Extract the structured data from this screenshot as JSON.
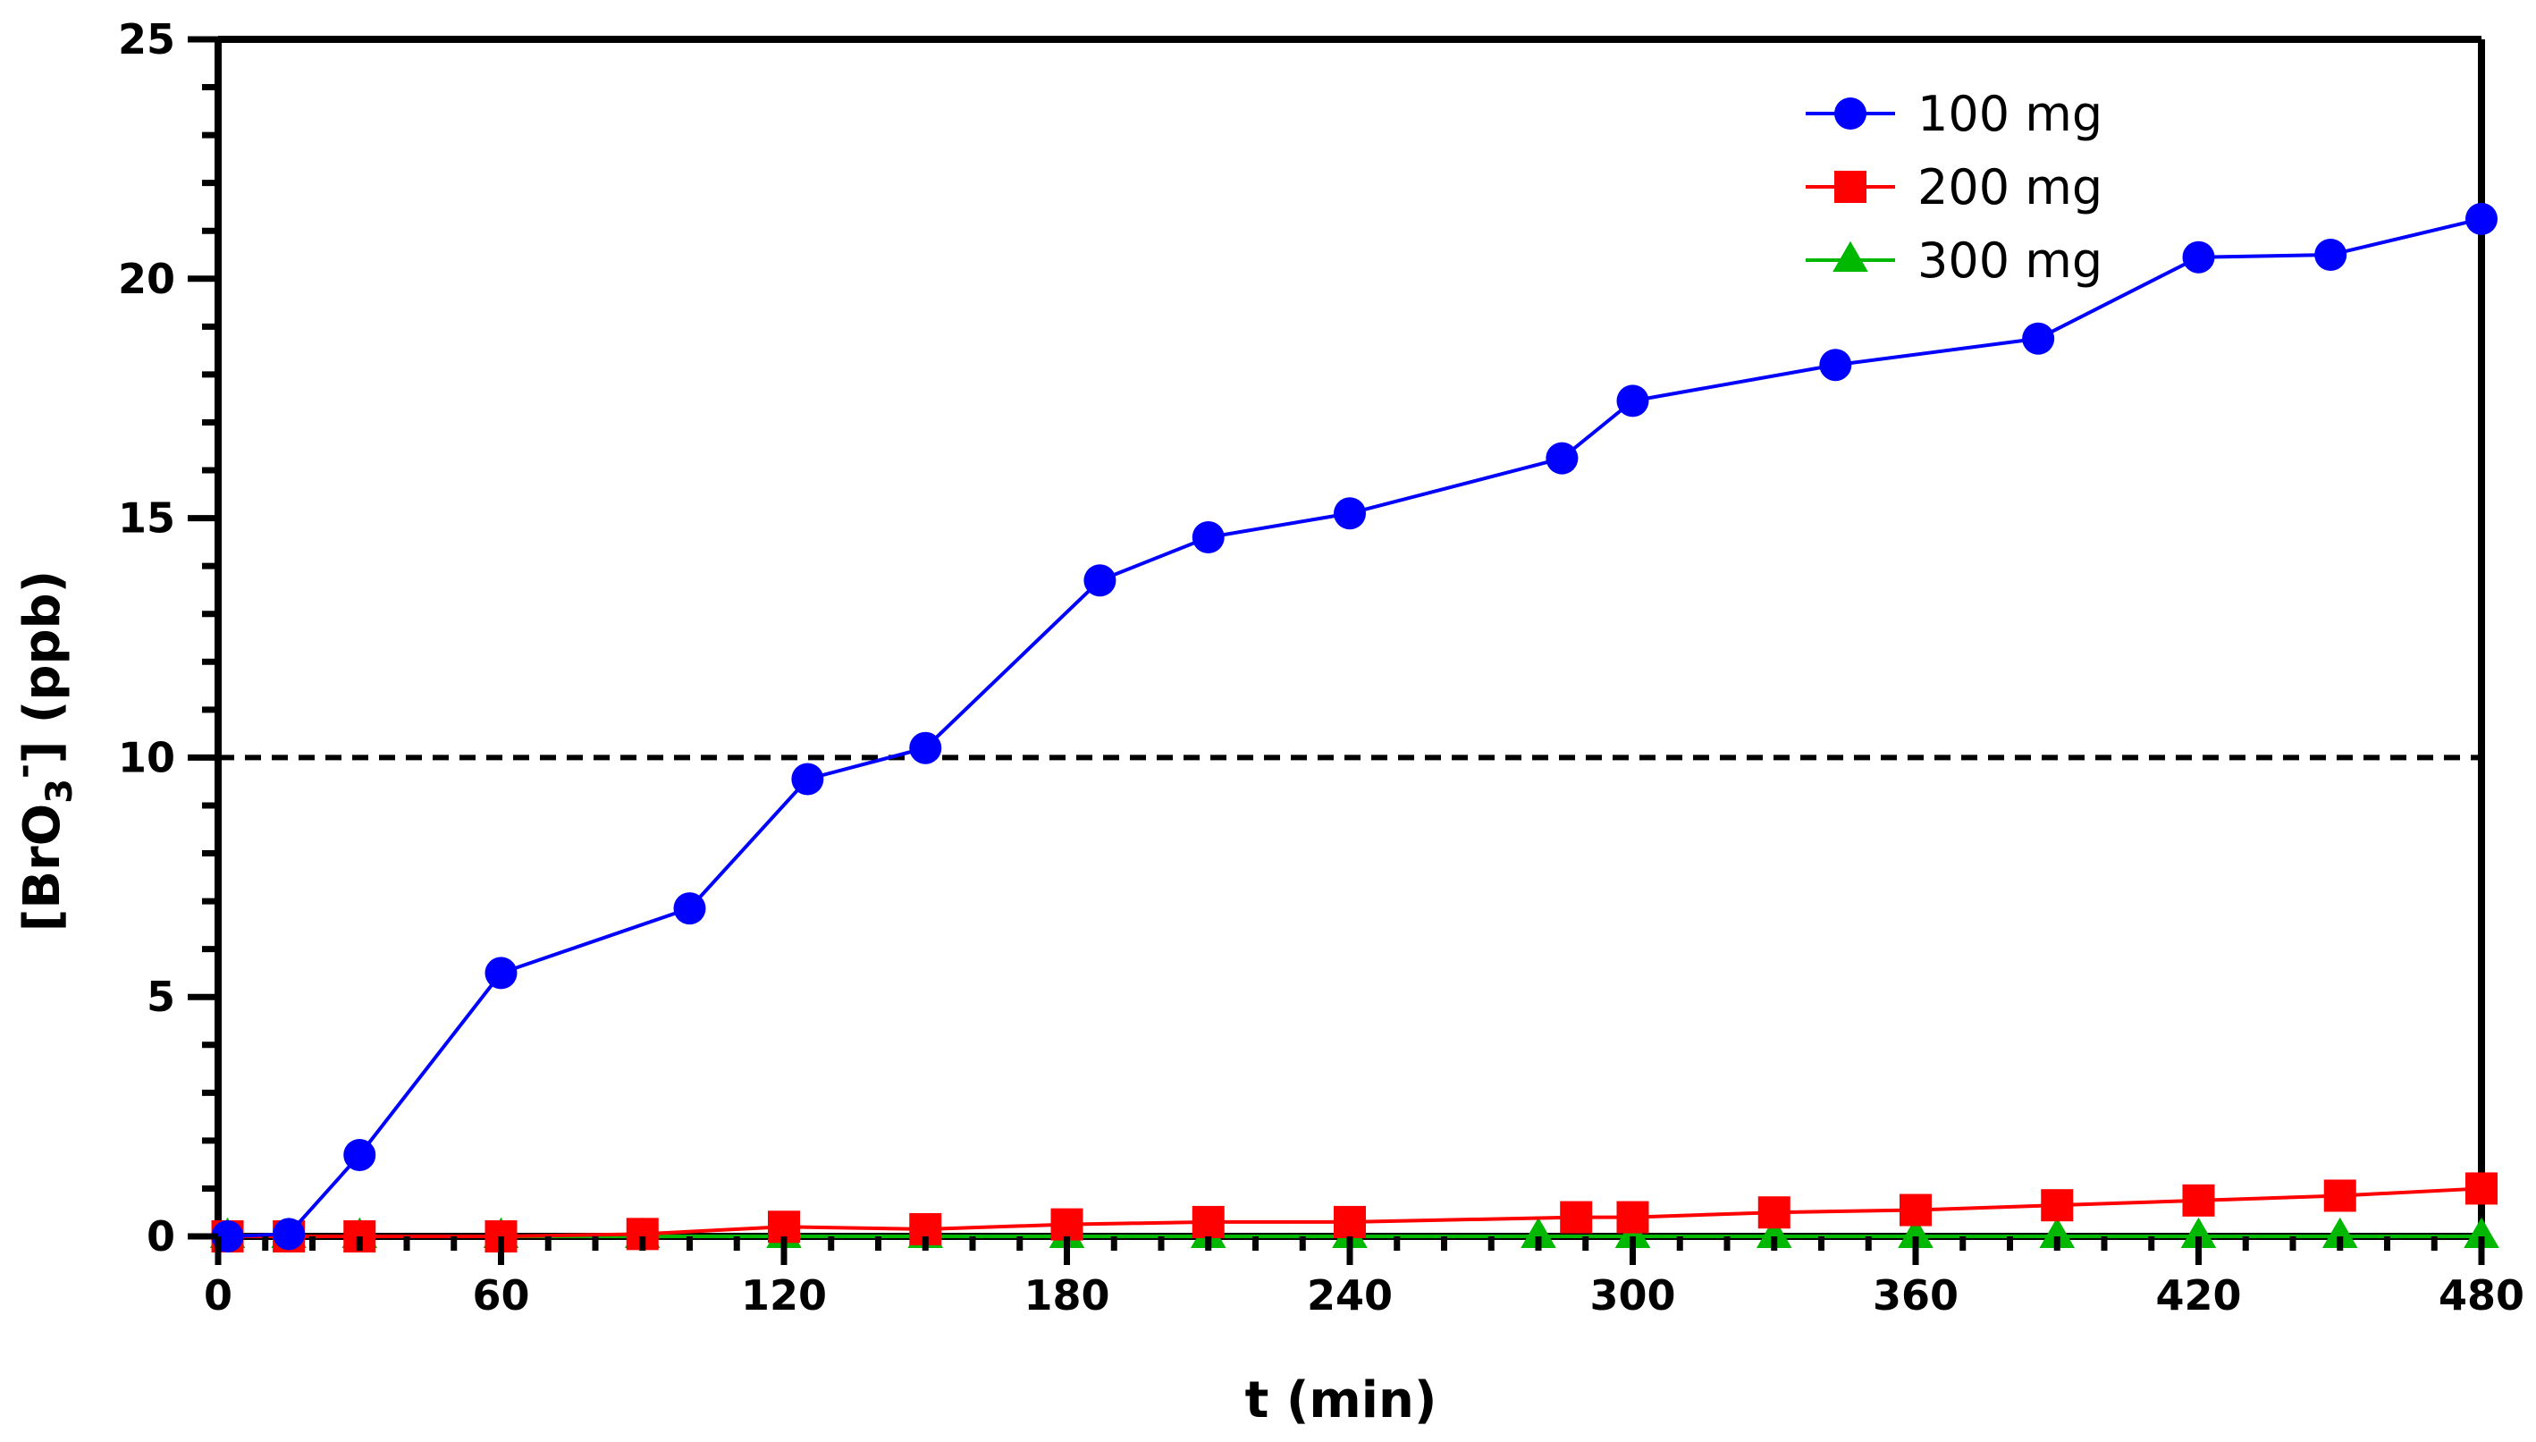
{
  "chart_data": {
    "type": "line",
    "title": "",
    "xlabel": "t (min)",
    "ylabel": {
      "prefix": "[BrO",
      "subscript": "3",
      "superscript": "-",
      "suffix": "] (ppb)"
    },
    "xlim": [
      0,
      480
    ],
    "ylim": [
      0,
      25
    ],
    "xticks": [
      0,
      60,
      120,
      180,
      240,
      300,
      360,
      420,
      480
    ],
    "yticks": [
      0,
      5,
      10,
      15,
      20,
      25
    ],
    "grid": false,
    "legend_position": "top-right",
    "reference_line": {
      "y": 10,
      "style": "dashed",
      "color": "#000000"
    },
    "series": [
      {
        "name": "100 mg",
        "color": "#0000ff",
        "marker": "circle",
        "x": [
          2,
          15,
          30,
          60,
          100,
          125,
          150,
          187,
          210,
          240,
          285,
          300,
          343,
          386,
          420,
          448,
          480
        ],
        "y": [
          0.0,
          0.05,
          1.7,
          5.5,
          6.85,
          9.55,
          10.2,
          13.7,
          14.6,
          15.1,
          16.25,
          17.45,
          18.2,
          18.75,
          20.45,
          20.5,
          21.25
        ]
      },
      {
        "name": "200 mg",
        "color": "#ff0000",
        "marker": "square",
        "x": [
          2,
          15,
          30,
          60,
          90,
          120,
          150,
          180,
          210,
          240,
          288,
          300,
          330,
          360,
          390,
          420,
          450,
          480
        ],
        "y": [
          0.0,
          0.0,
          0.0,
          0.0,
          0.05,
          0.2,
          0.15,
          0.25,
          0.3,
          0.3,
          0.4,
          0.4,
          0.5,
          0.55,
          0.65,
          0.75,
          0.85,
          1.0
        ]
      },
      {
        "name": "300 mg",
        "color": "#00b800",
        "marker": "triangle",
        "x": [
          2,
          15,
          30,
          60,
          90,
          120,
          150,
          180,
          210,
          240,
          280,
          300,
          330,
          360,
          390,
          420,
          450,
          480
        ],
        "y": [
          0,
          0,
          0,
          0,
          0,
          0,
          0,
          0,
          0,
          0,
          0,
          0,
          0,
          0,
          0,
          0,
          0,
          0
        ]
      }
    ]
  }
}
